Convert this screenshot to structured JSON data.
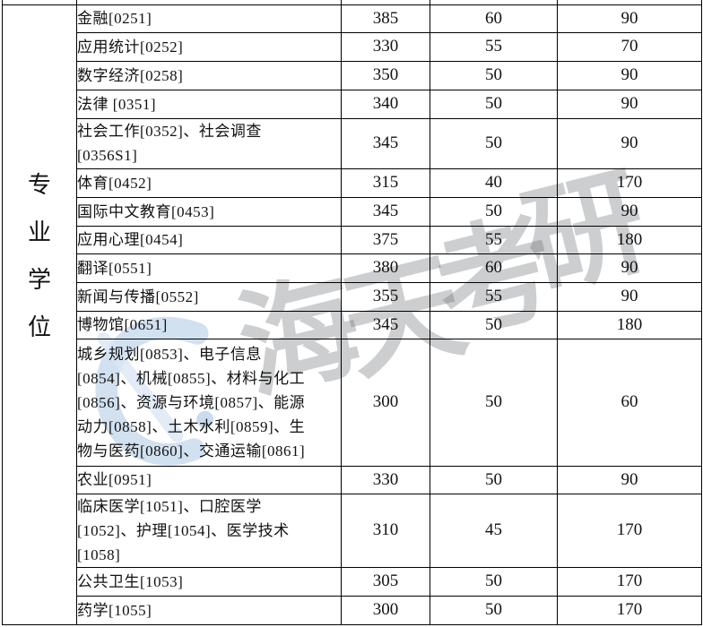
{
  "table": {
    "category": {
      "label": "专业学位",
      "chars": [
        "专",
        "业",
        "学",
        "位"
      ]
    },
    "rows": [
      {
        "program": "金融[0251]",
        "program_lines": [
          "金融[0251]"
        ],
        "scores": [
          "385",
          "60",
          "90"
        ]
      },
      {
        "program": "应用统计[0252]",
        "program_lines": [
          "应用统计[0252]"
        ],
        "scores": [
          "330",
          "55",
          "70"
        ]
      },
      {
        "program": "数字经济[0258]",
        "program_lines": [
          "数字经济[0258]"
        ],
        "scores": [
          "350",
          "50",
          "90"
        ]
      },
      {
        "program": "法律 [0351]",
        "program_lines": [
          "法律 [0351]"
        ],
        "scores": [
          "340",
          "50",
          "90"
        ]
      },
      {
        "program": "社会工作[0352]、社会调查[0356S1]",
        "program_lines": [
          "社会工作[0352]、社会调查",
          "[0356S1]"
        ],
        "scores": [
          "345",
          "50",
          "90"
        ]
      },
      {
        "program": "体育[0452]",
        "program_lines": [
          "体育[0452]"
        ],
        "scores": [
          "315",
          "40",
          "170"
        ]
      },
      {
        "program": "国际中文教育[0453]",
        "program_lines": [
          "国际中文教育[0453]"
        ],
        "scores": [
          "345",
          "50",
          "90"
        ]
      },
      {
        "program": "应用心理[0454]",
        "program_lines": [
          "应用心理[0454]"
        ],
        "scores": [
          "375",
          "55",
          "180"
        ]
      },
      {
        "program": "翻译[0551]",
        "program_lines": [
          "翻译[0551]"
        ],
        "scores": [
          "380",
          "60",
          "90"
        ]
      },
      {
        "program": "新闻与传播[0552]",
        "program_lines": [
          "新闻与传播[0552]"
        ],
        "scores": [
          "355",
          "55",
          "90"
        ]
      },
      {
        "program": "博物馆[0651]",
        "program_lines": [
          "博物馆[0651]"
        ],
        "scores": [
          "345",
          "50",
          "180"
        ]
      },
      {
        "program": "城乡规划[0853]、电子信息[0854]、机械[0855]、材料与化工[0856]、资源与环境[0857]、能源动力[0858]、土木水利[0859]、生物与医药[0860]、交通运输[0861]",
        "program_lines": [
          "城乡规划[0853]、电子信息",
          "[0854]、机械[0855]、材料与化工",
          "[0856]、资源与环境[0857]、能源",
          "动力[0858]、土木水利[0859]、生",
          "物与医药[0860]、交通运输[0861]"
        ],
        "scores": [
          "300",
          "50",
          "60"
        ]
      },
      {
        "program": "农业[0951]",
        "program_lines": [
          "农业[0951]"
        ],
        "scores": [
          "330",
          "50",
          "90"
        ]
      },
      {
        "program": "临床医学[1051]、口腔医学[1052]、护理[1054]、医学技术[1058]",
        "program_lines": [
          "临床医学[1051]、口腔医学",
          "[1052]、护理[1054]、医学技术",
          "[1058]"
        ],
        "scores": [
          "310",
          "45",
          "170"
        ]
      },
      {
        "program": "公共卫生[1053]",
        "program_lines": [
          "公共卫生[1053]"
        ],
        "scores": [
          "305",
          "50",
          "170"
        ]
      },
      {
        "program": "药学[1055]",
        "program_lines": [
          "药学[1055]"
        ],
        "scores": [
          "300",
          "50",
          "170"
        ]
      }
    ]
  },
  "watermark": {
    "text": "海天考研",
    "chars": [
      "海",
      "天",
      "考",
      "研"
    ],
    "text_color": "#c6c7ca",
    "logo_color": "#9cbede"
  },
  "colors": {
    "border": "#000000",
    "text": "#111111",
    "background": "#ffffff"
  }
}
